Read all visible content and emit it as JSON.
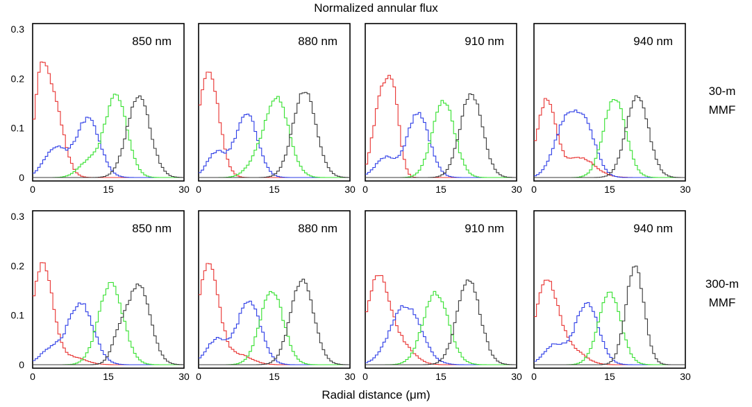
{
  "figure": {
    "title": "Normalized annular flux",
    "xlabel": "Radial distance (μm)",
    "row_labels": [
      "30-m MMF",
      "300-m MMF"
    ],
    "panel_labels": [
      "850 nm",
      "880 nm",
      "910 nm",
      "940 nm"
    ]
  },
  "chart_data": {
    "type": "line",
    "layout": "2 rows × 4 columns of panels",
    "title": "Normalized annular flux",
    "xlabel": "Radial distance (μm)",
    "ylabel": "",
    "xlim": [
      0,
      30
    ],
    "ylim": [
      0,
      0.3
    ],
    "x_ticks": [
      0,
      15,
      30
    ],
    "y_ticks": [
      0,
      0.1,
      0.2,
      0.3
    ],
    "y_tick_labels": [
      "0",
      "0.1",
      "0.2",
      "0.3"
    ],
    "grid": false,
    "line_style": "step",
    "series_colors": [
      "#e8312f",
      "#2b3be6",
      "#33e02d",
      "#383838"
    ],
    "panels": [
      {
        "row_label": "30-m MMF",
        "label": "850 nm",
        "series": [
          {
            "color": "#e8312f",
            "peaks": [
              [
                1.5,
                0.15,
                1.3
              ],
              [
                4,
                0.16,
                2
              ]
            ]
          },
          {
            "color": "#2b3be6",
            "peaks": [
              [
                4.5,
                0.06,
                2.2
              ],
              [
                11,
                0.12,
                2.3
              ]
            ]
          },
          {
            "color": "#33e02d",
            "peaks": [
              [
                16.5,
                0.165,
                2.2
              ],
              [
                11,
                0.03,
                2
              ]
            ]
          },
          {
            "color": "#383838",
            "peaks": [
              [
                21,
                0.165,
                2.3
              ]
            ]
          }
        ]
      },
      {
        "row_label": "30-m MMF",
        "label": "880 nm",
        "series": [
          {
            "color": "#e8312f",
            "peaks": [
              [
                2,
                0.215,
                2
              ]
            ]
          },
          {
            "color": "#2b3be6",
            "peaks": [
              [
                3.5,
                0.05,
                1.8
              ],
              [
                9.5,
                0.13,
                2.2
              ]
            ]
          },
          {
            "color": "#33e02d",
            "peaks": [
              [
                15.5,
                0.16,
                2.4
              ],
              [
                11,
                0.02,
                2
              ]
            ]
          },
          {
            "color": "#383838",
            "peaks": [
              [
                21,
                0.175,
                2.3
              ]
            ]
          }
        ]
      },
      {
        "row_label": "30-m MMF",
        "label": "910 nm",
        "series": [
          {
            "color": "#e8312f",
            "peaks": [
              [
                3,
                0.15,
                1.5
              ],
              [
                5.5,
                0.155,
                1.3
              ]
            ]
          },
          {
            "color": "#2b3be6",
            "peaks": [
              [
                4,
                0.04,
                2
              ],
              [
                10.5,
                0.13,
                2.2
              ]
            ]
          },
          {
            "color": "#33e02d",
            "peaks": [
              [
                15.5,
                0.155,
                2.2
              ]
            ]
          },
          {
            "color": "#383838",
            "peaks": [
              [
                21,
                0.17,
                2.2
              ]
            ]
          }
        ]
      },
      {
        "row_label": "30-m MMF",
        "label": "940 nm",
        "series": [
          {
            "color": "#e8312f",
            "peaks": [
              [
                2.5,
                0.155,
                1.8
              ],
              [
                9,
                0.04,
                3
              ]
            ]
          },
          {
            "color": "#2b3be6",
            "peaks": [
              [
                6,
                0.1,
                2.2
              ],
              [
                10,
                0.105,
                2.2
              ]
            ]
          },
          {
            "color": "#33e02d",
            "peaks": [
              [
                16,
                0.16,
                2.2
              ]
            ]
          },
          {
            "color": "#383838",
            "peaks": [
              [
                20.5,
                0.165,
                2.2
              ]
            ]
          }
        ]
      },
      {
        "row_label": "300-m MMF",
        "label": "850 nm",
        "series": [
          {
            "color": "#e8312f",
            "peaks": [
              [
                2,
                0.205,
                2
              ],
              [
                8,
                0.015,
                2.5
              ]
            ]
          },
          {
            "color": "#2b3be6",
            "peaks": [
              [
                3.5,
                0.03,
                2
              ],
              [
                9.5,
                0.125,
                2.5
              ]
            ]
          },
          {
            "color": "#33e02d",
            "peaks": [
              [
                15.5,
                0.165,
                2.4
              ]
            ]
          },
          {
            "color": "#383838",
            "peaks": [
              [
                21,
                0.16,
                2.3
              ],
              [
                17,
                0.04,
                1.5
              ]
            ]
          }
        ]
      },
      {
        "row_label": "300-m MMF",
        "label": "880 nm",
        "series": [
          {
            "color": "#e8312f",
            "peaks": [
              [
                2,
                0.205,
                2
              ],
              [
                8,
                0.02,
                2.5
              ]
            ]
          },
          {
            "color": "#2b3be6",
            "peaks": [
              [
                3.5,
                0.05,
                2
              ],
              [
                10,
                0.13,
                2.3
              ]
            ]
          },
          {
            "color": "#33e02d",
            "peaks": [
              [
                14.5,
                0.15,
                2.3
              ]
            ]
          },
          {
            "color": "#383838",
            "peaks": [
              [
                20.5,
                0.17,
                2.3
              ]
            ]
          }
        ]
      },
      {
        "row_label": "300-m MMF",
        "label": "910 nm",
        "series": [
          {
            "color": "#e8312f",
            "peaks": [
              [
                2.5,
                0.175,
                2.2
              ],
              [
                7,
                0.04,
                2.5
              ]
            ]
          },
          {
            "color": "#2b3be6",
            "peaks": [
              [
                8,
                0.12,
                3
              ]
            ]
          },
          {
            "color": "#33e02d",
            "peaks": [
              [
                14,
                0.145,
                2.5
              ]
            ]
          },
          {
            "color": "#383838",
            "peaks": [
              [
                20.5,
                0.17,
                2.3
              ]
            ]
          }
        ]
      },
      {
        "row_label": "300-m MMF",
        "label": "940 nm",
        "series": [
          {
            "color": "#e8312f",
            "peaks": [
              [
                2.5,
                0.17,
                2.2
              ],
              [
                7.5,
                0.03,
                2.5
              ]
            ]
          },
          {
            "color": "#2b3be6",
            "peaks": [
              [
                4,
                0.04,
                2
              ],
              [
                10.5,
                0.125,
                2.3
              ]
            ]
          },
          {
            "color": "#33e02d",
            "peaks": [
              [
                15,
                0.145,
                2.2
              ]
            ]
          },
          {
            "color": "#383838",
            "peaks": [
              [
                20,
                0.2,
                1.8
              ]
            ]
          }
        ]
      }
    ]
  }
}
